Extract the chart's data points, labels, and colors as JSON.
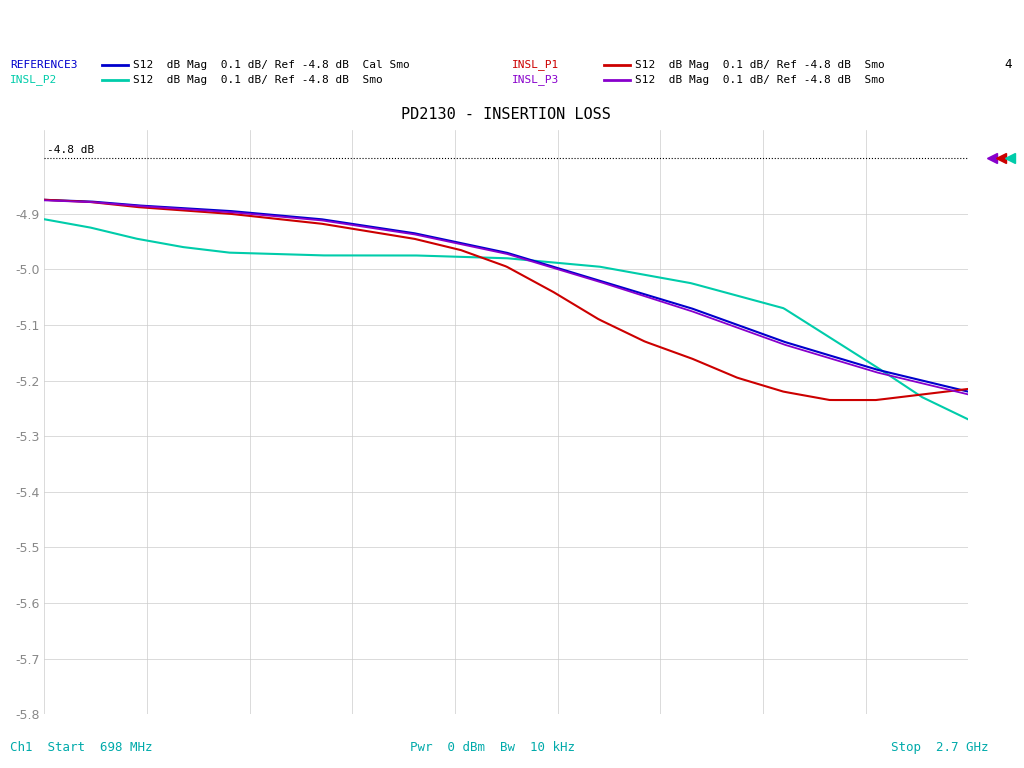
{
  "title": "PD2130 - INSERTION LOSS",
  "title_fontsize": 11,
  "xmin": 698,
  "xmax": 2700,
  "ymin": -5.8,
  "ymax": -4.75,
  "yticks": [
    -5.8,
    -5.7,
    -5.6,
    -5.5,
    -5.4,
    -5.3,
    -5.2,
    -5.1,
    -5.0,
    -4.9
  ],
  "ref_line": -4.8,
  "bottom_left": "Ch1  Start  698 MHz",
  "bottom_center": "Pwr  0 dBm  Bw  10 kHz",
  "bottom_right": "Stop  2.7 GHz",
  "trace_colors": [
    "#0000cc",
    "#cc0000",
    "#00ccaa",
    "#8800cc"
  ],
  "background_color": "#ffffff",
  "grid_color": "#cccccc",
  "text_color": "#00aaaa",
  "ref3_x": [
    0.0,
    0.05,
    0.1,
    0.2,
    0.3,
    0.4,
    0.5,
    0.6,
    0.7,
    0.8,
    0.9,
    1.0
  ],
  "ref3_y": [
    -4.875,
    -4.878,
    -4.885,
    -4.895,
    -4.91,
    -4.935,
    -4.97,
    -5.02,
    -5.07,
    -5.13,
    -5.18,
    -5.22
  ],
  "insl_p1_x": [
    0.0,
    0.05,
    0.1,
    0.2,
    0.3,
    0.4,
    0.45,
    0.5,
    0.55,
    0.6,
    0.65,
    0.7,
    0.75,
    0.8,
    0.85,
    0.9,
    0.95,
    1.0
  ],
  "insl_p1_y": [
    -4.875,
    -4.879,
    -4.888,
    -4.9,
    -4.918,
    -4.945,
    -4.965,
    -4.995,
    -5.04,
    -5.09,
    -5.13,
    -5.16,
    -5.195,
    -5.22,
    -5.235,
    -5.235,
    -5.225,
    -5.215
  ],
  "insl_p2_x": [
    0.0,
    0.05,
    0.1,
    0.15,
    0.2,
    0.3,
    0.4,
    0.5,
    0.6,
    0.65,
    0.7,
    0.8,
    0.9,
    0.95,
    1.0
  ],
  "insl_p2_y": [
    -4.91,
    -4.925,
    -4.945,
    -4.96,
    -4.97,
    -4.975,
    -4.975,
    -4.98,
    -4.995,
    -5.01,
    -5.025,
    -5.07,
    -5.175,
    -5.23,
    -5.27
  ],
  "insl_p3_x": [
    0.0,
    0.05,
    0.1,
    0.2,
    0.3,
    0.4,
    0.5,
    0.6,
    0.7,
    0.8,
    0.9,
    1.0
  ],
  "insl_p3_y": [
    -4.876,
    -4.879,
    -4.886,
    -4.897,
    -4.912,
    -4.937,
    -4.972,
    -5.022,
    -5.075,
    -5.135,
    -5.185,
    -5.225
  ]
}
